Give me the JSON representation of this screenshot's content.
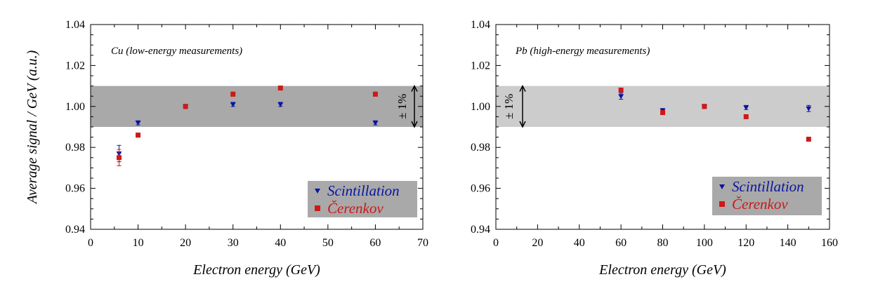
{
  "chart_data": [
    {
      "type": "scatter",
      "annotation": "Cu (low-energy measurements)",
      "xlabel": "Electron energy (GeV)",
      "ylabel": "Average signal / GeV (a.u.)",
      "xlim": [
        0,
        70
      ],
      "ylim": [
        0.94,
        1.04
      ],
      "xticks": [
        "0",
        "10",
        "20",
        "30",
        "40",
        "50",
        "60",
        "70"
      ],
      "yticks": [
        "0.94",
        "0.96",
        "0.98",
        "1.00",
        "1.02",
        "1.04"
      ],
      "band": {
        "low": 0.99,
        "high": 1.01,
        "label": "± 1%",
        "color": "#a9a9a9"
      },
      "legend_position": "bottom-right",
      "series": [
        {
          "name": "Scintillation",
          "marker": "triangle-down",
          "color": "#0a14a0",
          "x": [
            6,
            10,
            20,
            30,
            40,
            60
          ],
          "y": [
            0.977,
            0.992,
            1.0,
            1.001,
            1.001,
            0.992
          ],
          "err": [
            0.004,
            0.001,
            0.001,
            0.001,
            0.001,
            0.001
          ]
        },
        {
          "name": "Čerenkov",
          "marker": "square",
          "color": "#d01818",
          "x": [
            6,
            10,
            20,
            30,
            40,
            60
          ],
          "y": [
            0.975,
            0.986,
            1.0,
            1.006,
            1.009,
            1.006
          ],
          "err": [
            0.004,
            0.001,
            0.001,
            0.001,
            0.001,
            0.001
          ]
        }
      ]
    },
    {
      "type": "scatter",
      "annotation": "Pb (high-energy measurements)",
      "xlabel": "Electron energy (GeV)",
      "ylabel": "",
      "xlim": [
        0,
        160
      ],
      "ylim": [
        0.94,
        1.04
      ],
      "xticks": [
        "0",
        "20",
        "40",
        "60",
        "80",
        "100",
        "120",
        "140",
        "160"
      ],
      "yticks": [
        "0.94",
        "0.96",
        "0.98",
        "1.00",
        "1.02",
        "1.04"
      ],
      "band": {
        "low": 0.99,
        "high": 1.01,
        "label": "± 1%",
        "color": "#cccccc"
      },
      "legend_position": "bottom-right",
      "series": [
        {
          "name": "Scintillation",
          "marker": "triangle-down",
          "color": "#0a14a0",
          "x": [
            60,
            80,
            100,
            120,
            150
          ],
          "y": [
            1.005,
            0.998,
            1.0,
            0.9995,
            0.999
          ],
          "err": [
            0.0015,
            0.001,
            0.001,
            0.001,
            0.0015
          ]
        },
        {
          "name": "Čerenkov",
          "marker": "square",
          "color": "#d01818",
          "x": [
            60,
            80,
            100,
            120,
            150
          ],
          "y": [
            1.008,
            0.997,
            1.0,
            0.995,
            0.984
          ],
          "err": [
            0.001,
            0.001,
            0.001,
            0.001,
            0.001
          ]
        }
      ]
    }
  ]
}
